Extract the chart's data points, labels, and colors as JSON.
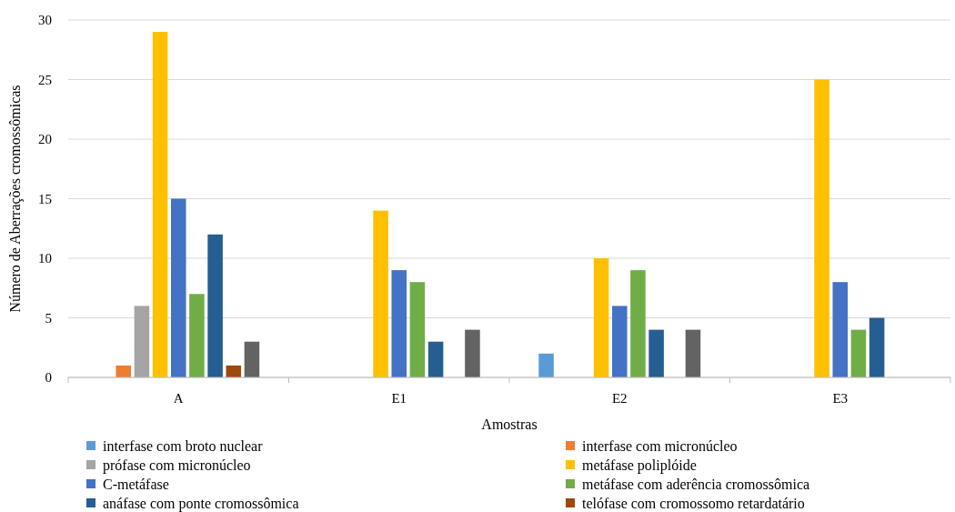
{
  "chart_data": {
    "type": "bar",
    "xlabel": "Amostras",
    "ylabel": "Número de Aberrações cromossômicas",
    "categories": [
      "A",
      "E1",
      "E2",
      "E3"
    ],
    "ylim": [
      0,
      30
    ],
    "yticks": [
      0,
      5,
      10,
      15,
      20,
      25,
      30
    ],
    "grid": "y",
    "legend": "bottom",
    "series": [
      {
        "name": "interfase com broto nuclear",
        "color": "#5b9bd5",
        "values": [
          0,
          0,
          2,
          0
        ]
      },
      {
        "name": "interfase com micronúcleo",
        "color": "#ed7d31",
        "values": [
          1,
          0,
          0,
          0
        ]
      },
      {
        "name": "prófase com micronúcleo",
        "color": "#a5a5a5",
        "values": [
          6,
          0,
          0,
          0
        ]
      },
      {
        "name": "metáfase poliplóide",
        "color": "#ffc000",
        "values": [
          29,
          14,
          10,
          25
        ]
      },
      {
        "name": "C-metáfase",
        "color": "#4472c4",
        "values": [
          15,
          9,
          6,
          8
        ]
      },
      {
        "name": "metáfase com aderência cromossômica",
        "color": "#70ad47",
        "values": [
          7,
          8,
          9,
          4
        ]
      },
      {
        "name": "anáfase com ponte cromossômica",
        "color": "#255e91",
        "values": [
          12,
          3,
          4,
          5
        ]
      },
      {
        "name": "telófase com cromossomo retardatário",
        "color": "#9e480e",
        "values": [
          1,
          0,
          0,
          0
        ]
      },
      {
        "color": "#636363",
        "values": [
          3,
          4,
          4,
          0
        ]
      }
    ]
  }
}
